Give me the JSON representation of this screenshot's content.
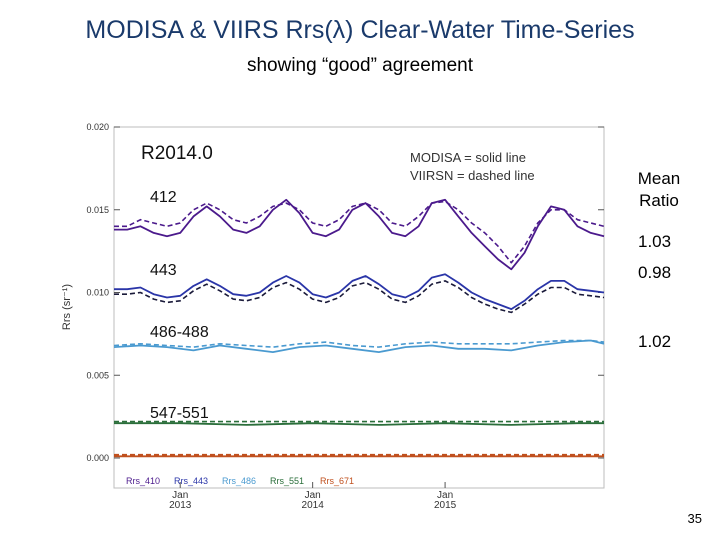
{
  "slide": {
    "title": "MODISA & VIIRS Rrs(λ) Clear-Water Time-Series",
    "subtitle": "showing “good” agreement",
    "page_number": "35",
    "ratio_header": "Mean\nRatio",
    "ratios": [
      "1.03",
      "0.98",
      "1.02"
    ]
  },
  "chart_data": {
    "type": "line",
    "ylabel": "Rrs (sr⁻¹)",
    "ylim": [
      0.0,
      0.02
    ],
    "yticks": [
      "0.000",
      "0.005",
      "0.010",
      "0.015",
      "0.020"
    ],
    "xlim": [
      2012.5,
      2016.2
    ],
    "xticks": [
      {
        "x": 2013,
        "line1": "Jan",
        "line2": "2013"
      },
      {
        "x": 2014,
        "line1": "Jan",
        "line2": "2014"
      },
      {
        "x": 2015,
        "line1": "Jan",
        "line2": "2015"
      }
    ],
    "version_label": "R2014.0",
    "style_note_1": "MODISA  = solid line",
    "style_note_2": "VIIRSN    = dashed line",
    "band_labels": [
      "412",
      "443",
      "486-488",
      "547-551"
    ],
    "legend": [
      "Rrs_410",
      "Rrs_443",
      "Rrs_486",
      "Rrs_551",
      "Rrs_671"
    ],
    "colors": {
      "Rrs_410": "#4b1a8c",
      "Rrs_443": "#2a35a8",
      "Rrs_486": "#4a9ad0",
      "Rrs_551": "#2a6e3a",
      "Rrs_671": "#c0501e",
      "viirs_443": "#1a1a3a",
      "title": "#1a3a6b"
    },
    "series": [
      {
        "name": "Rrs_410 MODISA",
        "style": "solid",
        "color": "Rrs_410",
        "x": [
          2012.5,
          2012.6,
          2012.7,
          2012.8,
          2012.9,
          2013.0,
          2013.1,
          2013.2,
          2013.3,
          2013.4,
          2013.5,
          2013.6,
          2013.7,
          2013.8,
          2013.9,
          2014.0,
          2014.1,
          2014.2,
          2014.3,
          2014.4,
          2014.5,
          2014.6,
          2014.7,
          2014.8,
          2014.9,
          2015.0,
          2015.1,
          2015.2,
          2015.3,
          2015.4,
          2015.5,
          2015.6,
          2015.7,
          2015.8,
          2015.9,
          2016.0,
          2016.1,
          2016.2
        ],
        "y": [
          0.0138,
          0.0138,
          0.014,
          0.0136,
          0.0134,
          0.0136,
          0.0146,
          0.0152,
          0.0146,
          0.0138,
          0.0136,
          0.014,
          0.015,
          0.0156,
          0.0148,
          0.0136,
          0.0134,
          0.0138,
          0.015,
          0.0154,
          0.0146,
          0.0136,
          0.0134,
          0.014,
          0.0154,
          0.0156,
          0.0146,
          0.0136,
          0.0128,
          0.012,
          0.0114,
          0.0124,
          0.014,
          0.0152,
          0.015,
          0.014,
          0.0136,
          0.0134
        ]
      },
      {
        "name": "Rrs_410 VIIRS",
        "style": "dashed",
        "color": "Rrs_410",
        "x": [
          2012.5,
          2012.6,
          2012.7,
          2012.8,
          2012.9,
          2013.0,
          2013.1,
          2013.2,
          2013.3,
          2013.4,
          2013.5,
          2013.6,
          2013.7,
          2013.8,
          2013.9,
          2014.0,
          2014.1,
          2014.2,
          2014.3,
          2014.4,
          2014.5,
          2014.6,
          2014.7,
          2014.8,
          2014.9,
          2015.0,
          2015.1,
          2015.2,
          2015.3,
          2015.4,
          2015.5,
          2015.6,
          2015.7,
          2015.8,
          2015.9,
          2016.0,
          2016.1,
          2016.2
        ],
        "y": [
          0.014,
          0.014,
          0.0144,
          0.0142,
          0.014,
          0.0142,
          0.015,
          0.0154,
          0.015,
          0.0144,
          0.0142,
          0.0146,
          0.0152,
          0.0154,
          0.015,
          0.0142,
          0.014,
          0.0144,
          0.0152,
          0.0154,
          0.015,
          0.0142,
          0.014,
          0.0146,
          0.0154,
          0.0155,
          0.015,
          0.0142,
          0.0136,
          0.0128,
          0.0118,
          0.0128,
          0.0142,
          0.015,
          0.015,
          0.0144,
          0.0142,
          0.014
        ]
      },
      {
        "name": "Rrs_443 MODISA",
        "style": "solid",
        "color": "Rrs_443",
        "x": [
          2012.5,
          2012.6,
          2012.7,
          2012.8,
          2012.9,
          2013.0,
          2013.1,
          2013.2,
          2013.3,
          2013.4,
          2013.5,
          2013.6,
          2013.7,
          2013.8,
          2013.9,
          2014.0,
          2014.1,
          2014.2,
          2014.3,
          2014.4,
          2014.5,
          2014.6,
          2014.7,
          2014.8,
          2014.9,
          2015.0,
          2015.1,
          2015.2,
          2015.3,
          2015.4,
          2015.5,
          2015.6,
          2015.7,
          2015.8,
          2015.9,
          2016.0,
          2016.1,
          2016.2
        ],
        "y": [
          0.0102,
          0.0102,
          0.0103,
          0.0099,
          0.0097,
          0.0098,
          0.0104,
          0.0108,
          0.0104,
          0.0099,
          0.0098,
          0.01,
          0.0106,
          0.011,
          0.0106,
          0.0099,
          0.0097,
          0.01,
          0.0107,
          0.011,
          0.0105,
          0.0099,
          0.0097,
          0.0101,
          0.0109,
          0.0111,
          0.0106,
          0.01,
          0.0096,
          0.0093,
          0.009,
          0.0095,
          0.0102,
          0.0107,
          0.0107,
          0.0102,
          0.0101,
          0.01
        ]
      },
      {
        "name": "Rrs_443 VIIRS",
        "style": "dashed",
        "color": "viirs_443",
        "x": [
          2012.5,
          2012.6,
          2012.7,
          2012.8,
          2012.9,
          2013.0,
          2013.1,
          2013.2,
          2013.3,
          2013.4,
          2013.5,
          2013.6,
          2013.7,
          2013.8,
          2013.9,
          2014.0,
          2014.1,
          2014.2,
          2014.3,
          2014.4,
          2014.5,
          2014.6,
          2014.7,
          2014.8,
          2014.9,
          2015.0,
          2015.1,
          2015.2,
          2015.3,
          2015.4,
          2015.5,
          2015.6,
          2015.7,
          2015.8,
          2015.9,
          2016.0,
          2016.1,
          2016.2
        ],
        "y": [
          0.0099,
          0.0099,
          0.01,
          0.0096,
          0.0094,
          0.0095,
          0.0101,
          0.0105,
          0.0101,
          0.0096,
          0.0095,
          0.0097,
          0.0103,
          0.0106,
          0.0102,
          0.0096,
          0.0094,
          0.0097,
          0.0104,
          0.0106,
          0.0102,
          0.0096,
          0.0094,
          0.0098,
          0.0105,
          0.0107,
          0.0103,
          0.0097,
          0.0093,
          0.009,
          0.0088,
          0.0093,
          0.0099,
          0.0103,
          0.0103,
          0.0099,
          0.0098,
          0.0097
        ]
      },
      {
        "name": "Rrs_486 MODISA",
        "style": "solid",
        "color": "Rrs_486",
        "x": [
          2012.5,
          2012.7,
          2012.9,
          2013.1,
          2013.3,
          2013.5,
          2013.7,
          2013.9,
          2014.1,
          2014.3,
          2014.5,
          2014.7,
          2014.9,
          2015.1,
          2015.3,
          2015.5,
          2015.7,
          2015.9,
          2016.1,
          2016.2
        ],
        "y": [
          0.0067,
          0.0068,
          0.0067,
          0.0065,
          0.0068,
          0.0066,
          0.0064,
          0.0067,
          0.0068,
          0.0066,
          0.0064,
          0.0067,
          0.0068,
          0.0066,
          0.0066,
          0.0065,
          0.0068,
          0.007,
          0.0071,
          0.0069
        ]
      },
      {
        "name": "Rrs_486 VIIRS",
        "style": "dashed",
        "color": "Rrs_486",
        "x": [
          2012.5,
          2012.7,
          2012.9,
          2013.1,
          2013.3,
          2013.5,
          2013.7,
          2013.9,
          2014.1,
          2014.3,
          2014.5,
          2014.7,
          2014.9,
          2015.1,
          2015.3,
          2015.5,
          2015.7,
          2015.9,
          2016.1,
          2016.2
        ],
        "y": [
          0.0068,
          0.0069,
          0.0068,
          0.0067,
          0.0069,
          0.0068,
          0.0067,
          0.0069,
          0.007,
          0.0068,
          0.0067,
          0.0069,
          0.007,
          0.0069,
          0.0069,
          0.0069,
          0.007,
          0.0071,
          0.0071,
          0.007
        ]
      },
      {
        "name": "Rrs_551 MODISA",
        "style": "solid",
        "color": "Rrs_551",
        "x": [
          2012.5,
          2013.0,
          2013.5,
          2014.0,
          2014.5,
          2015.0,
          2015.5,
          2016.0,
          2016.2
        ],
        "y": [
          0.0021,
          0.0021,
          0.002,
          0.0021,
          0.002,
          0.0021,
          0.002,
          0.0021,
          0.0021
        ]
      },
      {
        "name": "Rrs_551 VIIRS",
        "style": "dashed",
        "color": "Rrs_551",
        "x": [
          2012.5,
          2013.0,
          2013.5,
          2014.0,
          2014.5,
          2015.0,
          2015.5,
          2016.0,
          2016.2
        ],
        "y": [
          0.0022,
          0.0022,
          0.0022,
          0.0022,
          0.0022,
          0.0022,
          0.0022,
          0.0022,
          0.0022
        ]
      },
      {
        "name": "Rrs_671 MODISA",
        "style": "solid",
        "color": "Rrs_671",
        "x": [
          2012.5,
          2016.2
        ],
        "y": [
          0.0001,
          0.0001
        ]
      },
      {
        "name": "Rrs_671 VIIRS",
        "style": "dashed",
        "color": "Rrs_671",
        "x": [
          2012.5,
          2016.2
        ],
        "y": [
          0.0002,
          0.0002
        ]
      }
    ]
  }
}
